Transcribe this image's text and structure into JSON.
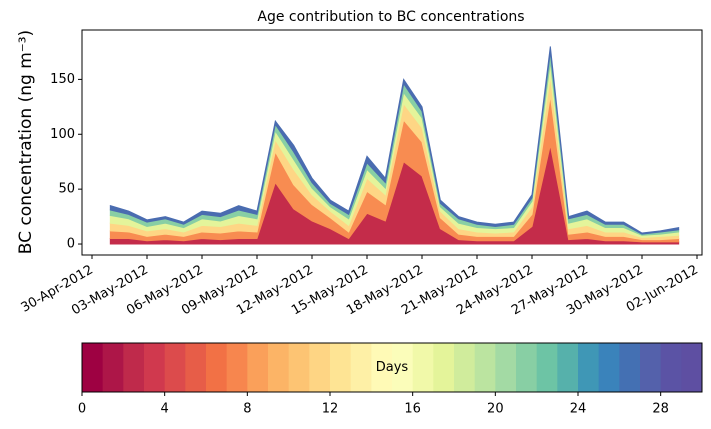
{
  "chart_data": {
    "type": "stacked_area",
    "title": "Age contribution to BC concentrations",
    "ylabel": "BC concentration (ng m⁻³)",
    "x": [
      "2012-05-01",
      "2012-05-02",
      "2012-05-03",
      "2012-05-04",
      "2012-05-05",
      "2012-05-06",
      "2012-05-07",
      "2012-05-08",
      "2012-05-09",
      "2012-05-10",
      "2012-05-11",
      "2012-05-12",
      "2012-05-13",
      "2012-05-14",
      "2012-05-15",
      "2012-05-16",
      "2012-05-17",
      "2012-05-18",
      "2012-05-19",
      "2012-05-20",
      "2012-05-21",
      "2012-05-22",
      "2012-05-23",
      "2012-05-24",
      "2012-05-25",
      "2012-05-26",
      "2012-05-27",
      "2012-05-28",
      "2012-05-29",
      "2012-05-30",
      "2012-05-31",
      "2012-06-01"
    ],
    "series": [
      {
        "color": "#c42c4a",
        "values": [
          5,
          5,
          3,
          4,
          3,
          5,
          4,
          5,
          5,
          56,
          32,
          21,
          14,
          5,
          28,
          21,
          75,
          62,
          14,
          4,
          3,
          3,
          3,
          16,
          90,
          4,
          5,
          3,
          3,
          2,
          2,
          2
        ]
      },
      {
        "color": "#f88c51",
        "values": [
          7,
          6,
          4,
          5,
          4,
          6,
          6,
          7,
          6,
          28,
          22,
          15,
          10,
          6,
          20,
          15,
          38,
          31,
          10,
          5,
          4,
          4,
          4,
          11,
          45,
          5,
          6,
          4,
          4,
          2,
          2,
          3
        ]
      },
      {
        "color": "#fed685",
        "values": [
          7,
          6,
          5,
          5,
          4,
          6,
          6,
          7,
          6,
          11,
          14,
          9,
          6,
          6,
          12,
          9,
          15,
          13,
          6,
          5,
          4,
          3,
          4,
          7,
          18,
          5,
          6,
          4,
          4,
          2,
          3,
          3
        ]
      },
      {
        "color": "#e4f49a",
        "values": [
          7,
          6,
          4,
          5,
          4,
          6,
          5,
          7,
          6,
          8,
          9,
          6,
          4,
          6,
          8,
          6,
          10,
          9,
          4,
          5,
          4,
          4,
          4,
          5,
          13,
          5,
          6,
          4,
          4,
          2,
          2,
          3
        ]
      },
      {
        "color": "#88cfa4",
        "values": [
          5,
          4,
          4,
          4,
          3,
          4,
          4,
          5,
          4,
          6,
          7,
          5,
          3,
          4,
          6,
          5,
          8,
          6,
          3,
          4,
          3,
          2,
          3,
          3,
          9,
          4,
          4,
          3,
          3,
          1,
          2,
          2
        ]
      },
      {
        "color": "#4a6cb0",
        "values": [
          4,
          3,
          2,
          2,
          2,
          3,
          3,
          4,
          3,
          3,
          6,
          4,
          3,
          3,
          6,
          4,
          4,
          4,
          3,
          2,
          2,
          2,
          2,
          3,
          5,
          2,
          3,
          2,
          2,
          1,
          1,
          2
        ]
      }
    ],
    "ylim": [
      -10,
      195
    ],
    "yticks": [
      0,
      50,
      100,
      150
    ],
    "xticks": [
      {
        "value": "2012-04-30",
        "label": "30-Apr-2012"
      },
      {
        "value": "2012-05-03",
        "label": "03-May-2012"
      },
      {
        "value": "2012-05-06",
        "label": "06-May-2012"
      },
      {
        "value": "2012-05-09",
        "label": "09-May-2012"
      },
      {
        "value": "2012-05-12",
        "label": "12-May-2012"
      },
      {
        "value": "2012-05-15",
        "label": "15-May-2012"
      },
      {
        "value": "2012-05-18",
        "label": "18-May-2012"
      },
      {
        "value": "2012-05-21",
        "label": "21-May-2012"
      },
      {
        "value": "2012-05-24",
        "label": "24-May-2012"
      },
      {
        "value": "2012-05-27",
        "label": "27-May-2012"
      },
      {
        "value": "2012-05-30",
        "label": "30-May-2012"
      },
      {
        "value": "2012-06-02",
        "label": "02-Jun-2012"
      }
    ],
    "colorbar": {
      "label": "Days",
      "lim": [
        0,
        30
      ],
      "ticks": [
        0,
        4,
        8,
        12,
        16,
        20,
        24,
        28
      ],
      "colors": [
        "#9e0142",
        "#ad1648",
        "#bf2a4b",
        "#d0394e",
        "#dc4b4c",
        "#e75d48",
        "#f27145",
        "#f7864e",
        "#faa05a",
        "#fcb466",
        "#fdc473",
        "#fed584",
        "#fee494",
        "#fef0a6",
        "#fffab6",
        "#fbfdba",
        "#f1f9a9",
        "#e4f49a",
        "#d0ec9c",
        "#bbe4a0",
        "#a3daa4",
        "#88cfa4",
        "#6dc4a5",
        "#56b1ab",
        "#3f97b6",
        "#3a83bb",
        "#4470b3",
        "#5461ab",
        "#5b53a5",
        "#5e4fa2"
      ]
    }
  }
}
